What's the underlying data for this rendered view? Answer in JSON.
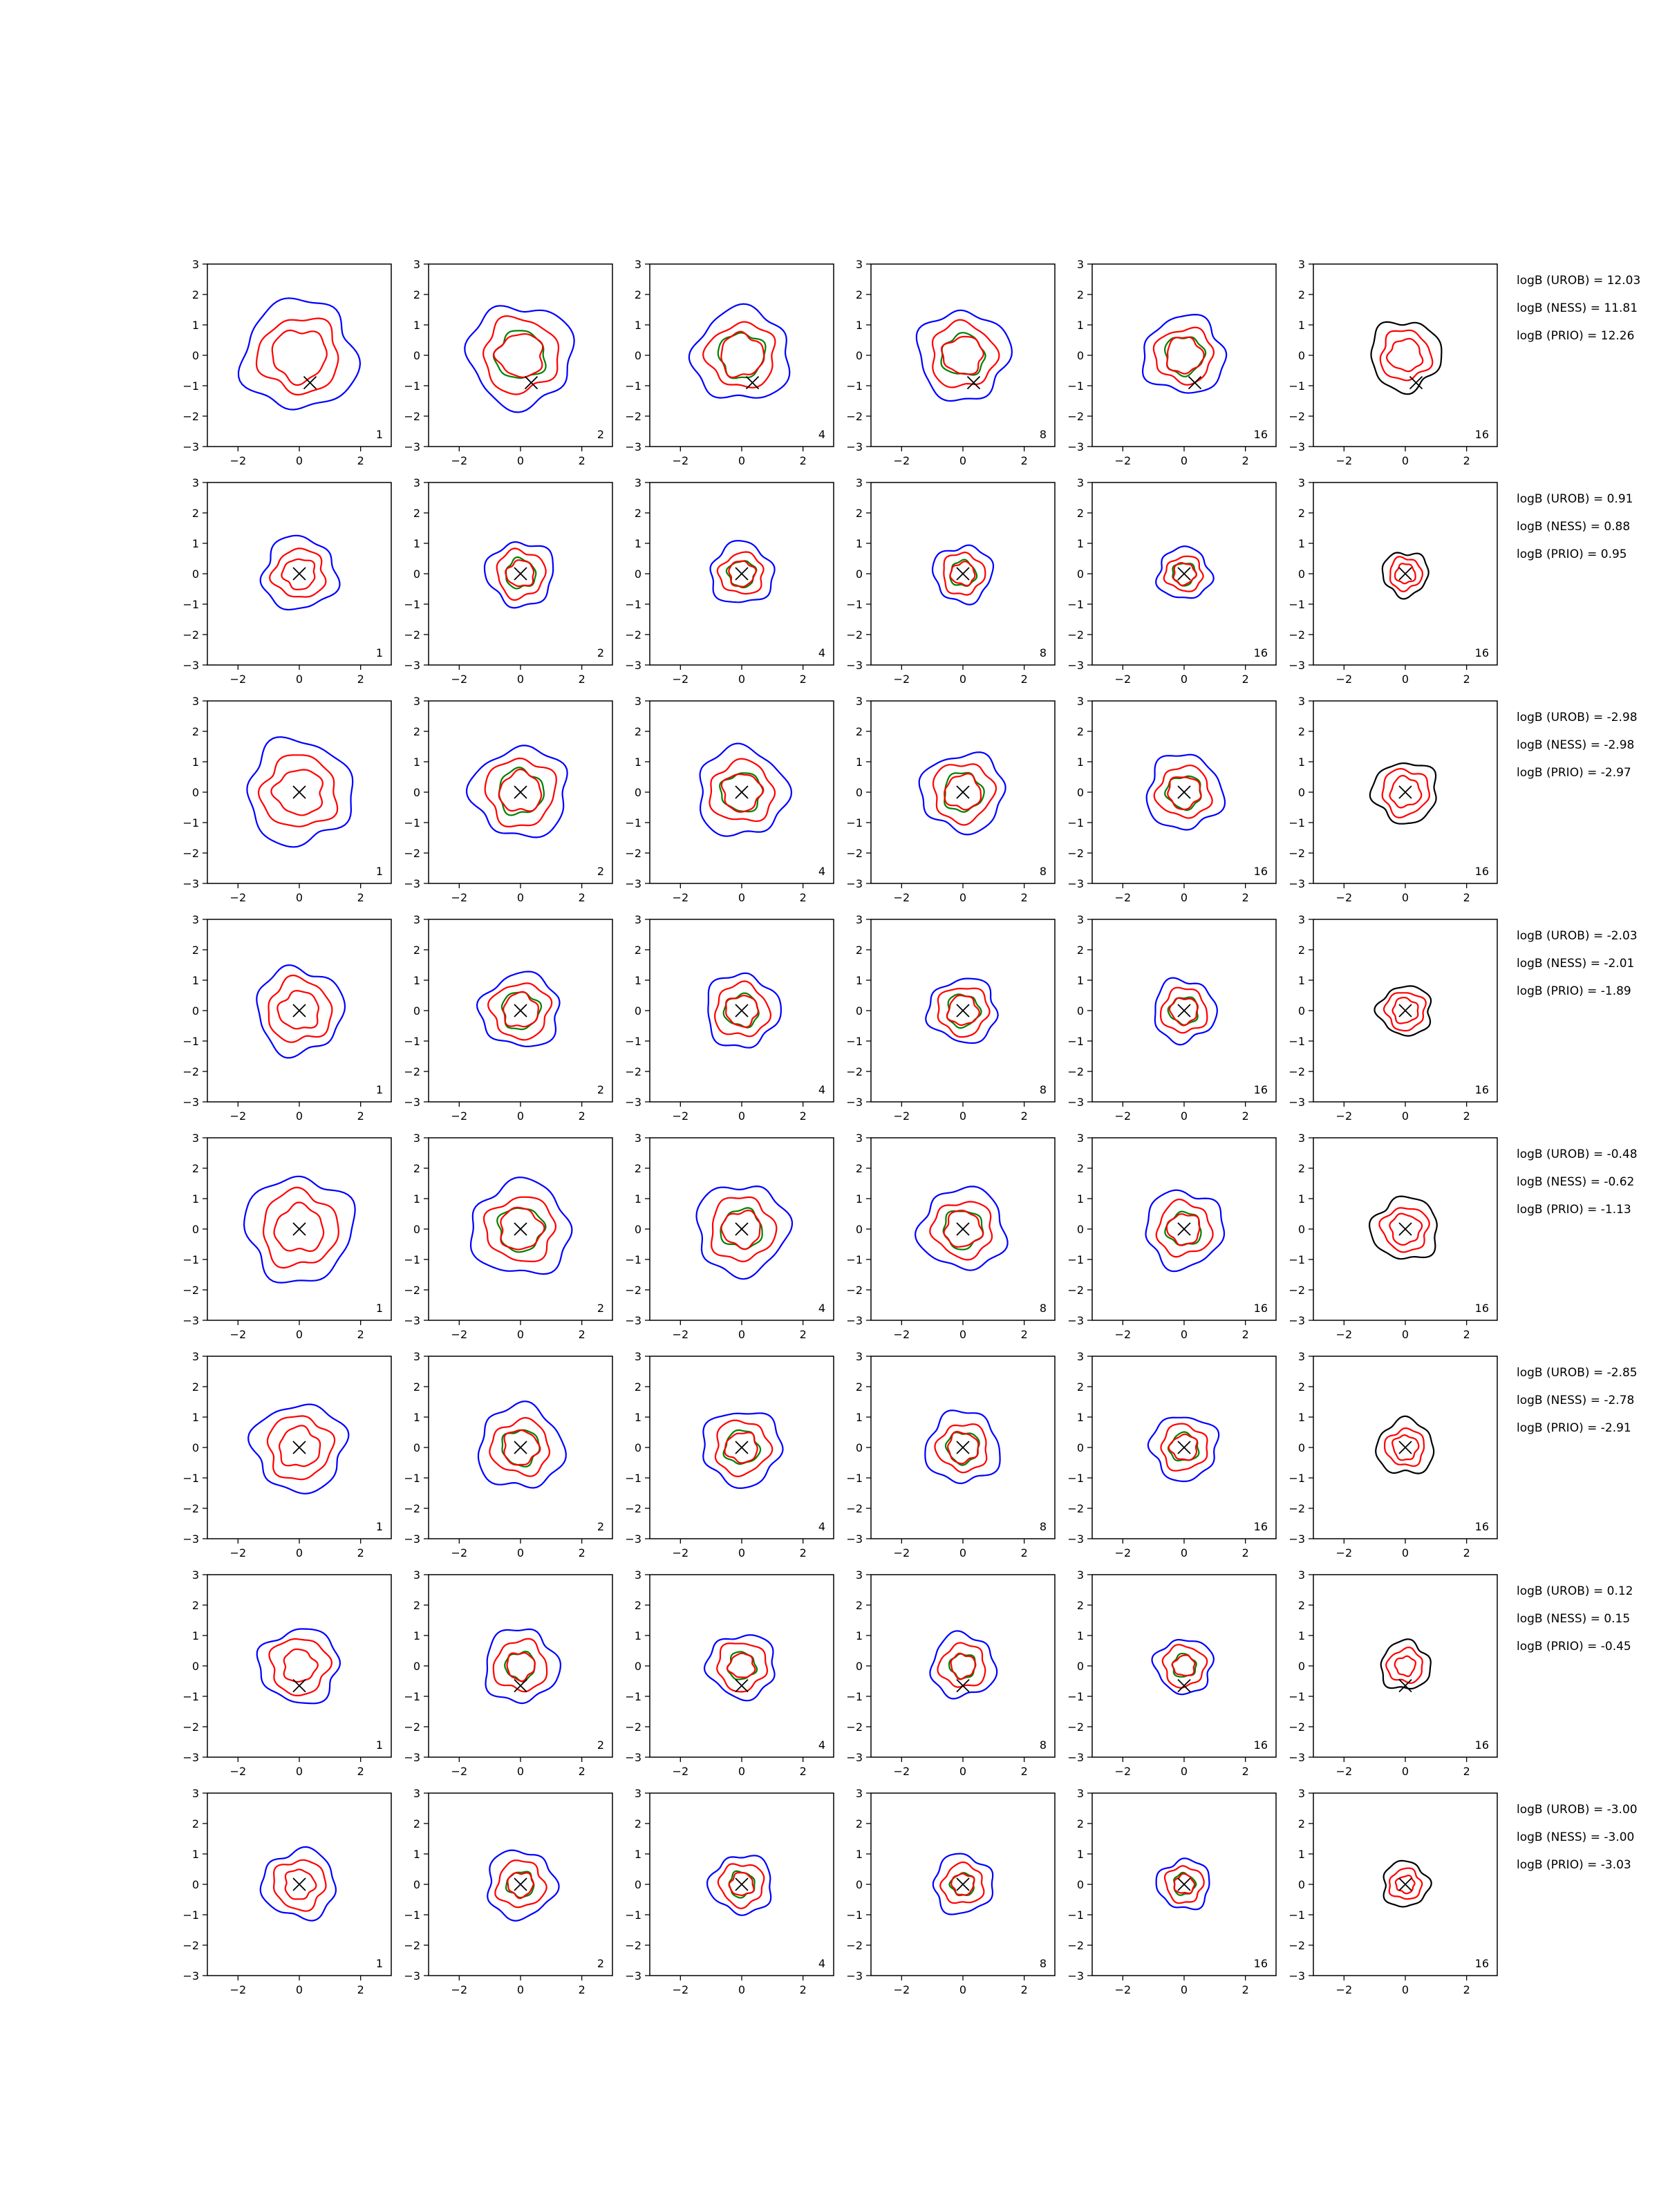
{
  "chart_data": {
    "type": "contour-grid",
    "rows": 8,
    "columns": 6,
    "xlim": [
      -3,
      3
    ],
    "ylim": [
      -3,
      3
    ],
    "x_ticks": [
      "−2",
      "0",
      "2"
    ],
    "y_ticks": [
      "3",
      "2",
      "1",
      "0",
      "−1",
      "−2",
      "−3"
    ],
    "panel_labels": [
      "1",
      "2",
      "4",
      "8",
      "16",
      "16"
    ],
    "colors": {
      "red": "#ff0000",
      "blue": "#0000ff",
      "green": "#008000",
      "black": "#000000"
    },
    "panel_contours": [
      [
        "blue",
        "red",
        "red"
      ],
      [
        "blue",
        "red",
        "green",
        "red"
      ],
      [
        "blue",
        "red",
        "green",
        "red"
      ],
      [
        "blue",
        "red",
        "green",
        "red"
      ],
      [
        "blue",
        "red",
        "green",
        "red"
      ],
      [
        "black",
        "red",
        "red"
      ]
    ],
    "markers": [
      {
        "x": 0.35,
        "y": -0.9
      },
      {
        "x": 0.0,
        "y": 0.0
      },
      {
        "x": 0.0,
        "y": 0.0
      },
      {
        "x": 0.0,
        "y": 0.0
      },
      {
        "x": 0.0,
        "y": 0.0
      },
      {
        "x": 0.0,
        "y": 0.0
      },
      {
        "x": 0.0,
        "y": -0.65
      },
      {
        "x": 0.0,
        "y": 0.0
      }
    ],
    "contour_radii": [
      [
        1.85,
        1.4,
        1.0
      ],
      [
        1.2,
        0.9,
        0.6
      ],
      [
        1.7,
        1.3,
        0.9
      ],
      [
        1.4,
        1.1,
        0.75
      ],
      [
        1.75,
        1.3,
        0.9
      ],
      [
        1.5,
        1.1,
        0.75
      ],
      [
        1.3,
        1.0,
        0.6
      ],
      [
        1.2,
        0.9,
        0.55
      ]
    ],
    "annotations": [
      [
        "logB (UROB) = 12.03",
        "logB (NESS) = 11.81",
        "logB (PRIO) = 12.26"
      ],
      [
        "logB (UROB) = 0.91",
        "logB (NESS) = 0.88",
        "logB (PRIO) = 0.95"
      ],
      [
        "logB (UROB) = -2.98",
        "logB (NESS) = -2.98",
        "logB (PRIO) = -2.97"
      ],
      [
        "logB (UROB) = -2.03",
        "logB (NESS) = -2.01",
        "logB (PRIO) = -1.89"
      ],
      [
        "logB (UROB) = -0.48",
        "logB (NESS) = -0.62",
        "logB (PRIO) = -1.13"
      ],
      [
        "logB (UROB) = -2.85",
        "logB (NESS) = -2.78",
        "logB (PRIO) = -2.91"
      ],
      [
        "logB (UROB) = 0.12",
        "logB (NESS) = 0.15",
        "logB (PRIO) = -0.45"
      ],
      [
        "logB (UROB) = -3.00",
        "logB (NESS) = -3.00",
        "logB (PRIO) = -3.03"
      ]
    ]
  }
}
